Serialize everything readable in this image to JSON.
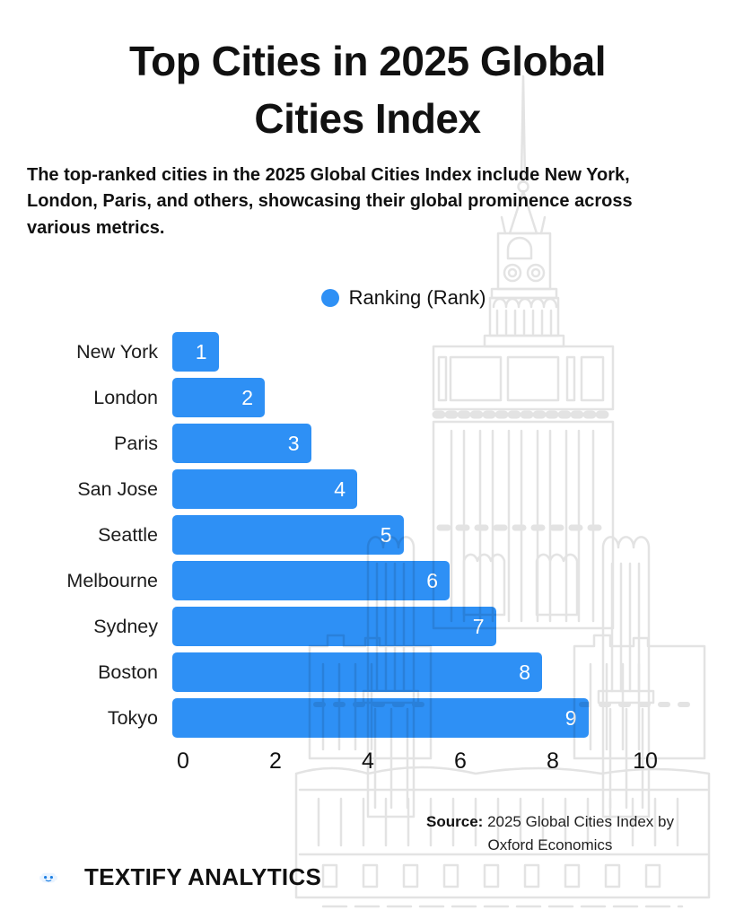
{
  "header": {
    "title_lines": [
      "Top Cities in 2025 Global",
      "Cities Index"
    ],
    "subtitle": "The top-ranked cities in the 2025 Global Cities Index include New York, London, Paris, and others, showcasing their global prominence across various metrics."
  },
  "legend": {
    "label": "Ranking (Rank)"
  },
  "chart_data": {
    "type": "bar",
    "orientation": "horizontal",
    "title": "Top Cities in 2025 Global Cities Index",
    "series_name": "Ranking (Rank)",
    "categories": [
      "New York",
      "London",
      "Paris",
      "San Jose",
      "Seattle",
      "Melbourne",
      "Sydney",
      "Boston",
      "Tokyo"
    ],
    "values": [
      1,
      2,
      3,
      4,
      5,
      6,
      7,
      8,
      9
    ],
    "xlabel": "",
    "ylabel": "",
    "xlim": [
      0,
      10
    ],
    "x_ticks": [
      "0",
      "2",
      "4",
      "6",
      "8",
      "10"
    ],
    "grid": false,
    "legend_position": "top-center",
    "value_labels": "inside-end"
  },
  "source": {
    "prefix": "Source:",
    "text": "2025 Global Cities Index by Oxford Economics"
  },
  "footer": {
    "brand": "TEXTIFY ANALYTICS"
  },
  "colors": {
    "bar": "#2e90f5",
    "legend_dot": "#2e90f5",
    "value_text": "#ffffff",
    "logo_bg": "#1a7de2",
    "sketch": "#e3e3e3",
    "text": "#111111"
  }
}
